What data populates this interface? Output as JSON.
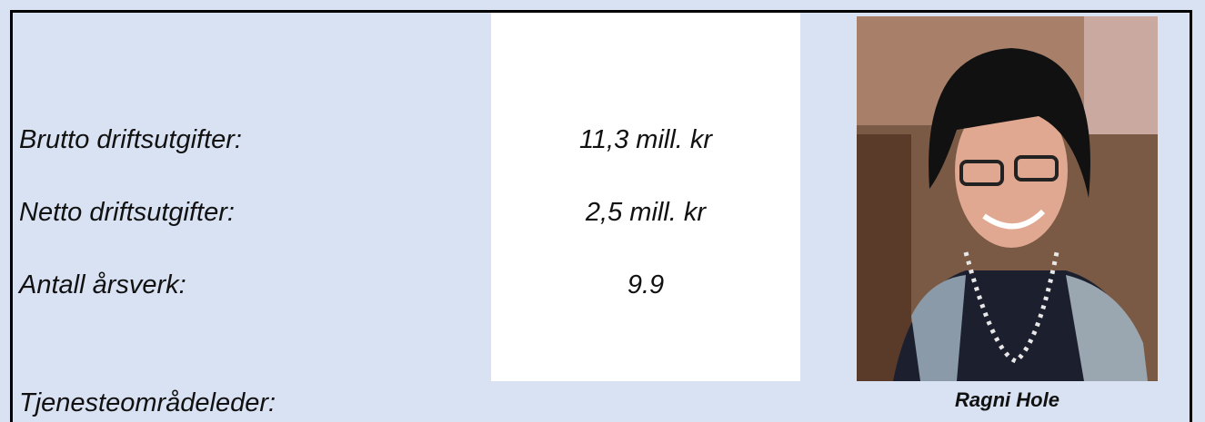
{
  "rows": [
    {
      "label": "Brutto driftsutgifter:",
      "value": "11,3 mill. kr"
    },
    {
      "label": "Netto driftsutgifter:",
      "value": "2,5 mill. kr"
    },
    {
      "label": "Antall årsverk:",
      "value": "9.9"
    }
  ],
  "leader": {
    "title": "Tjenesteområdeleder:",
    "name": "Ragni Hole"
  }
}
